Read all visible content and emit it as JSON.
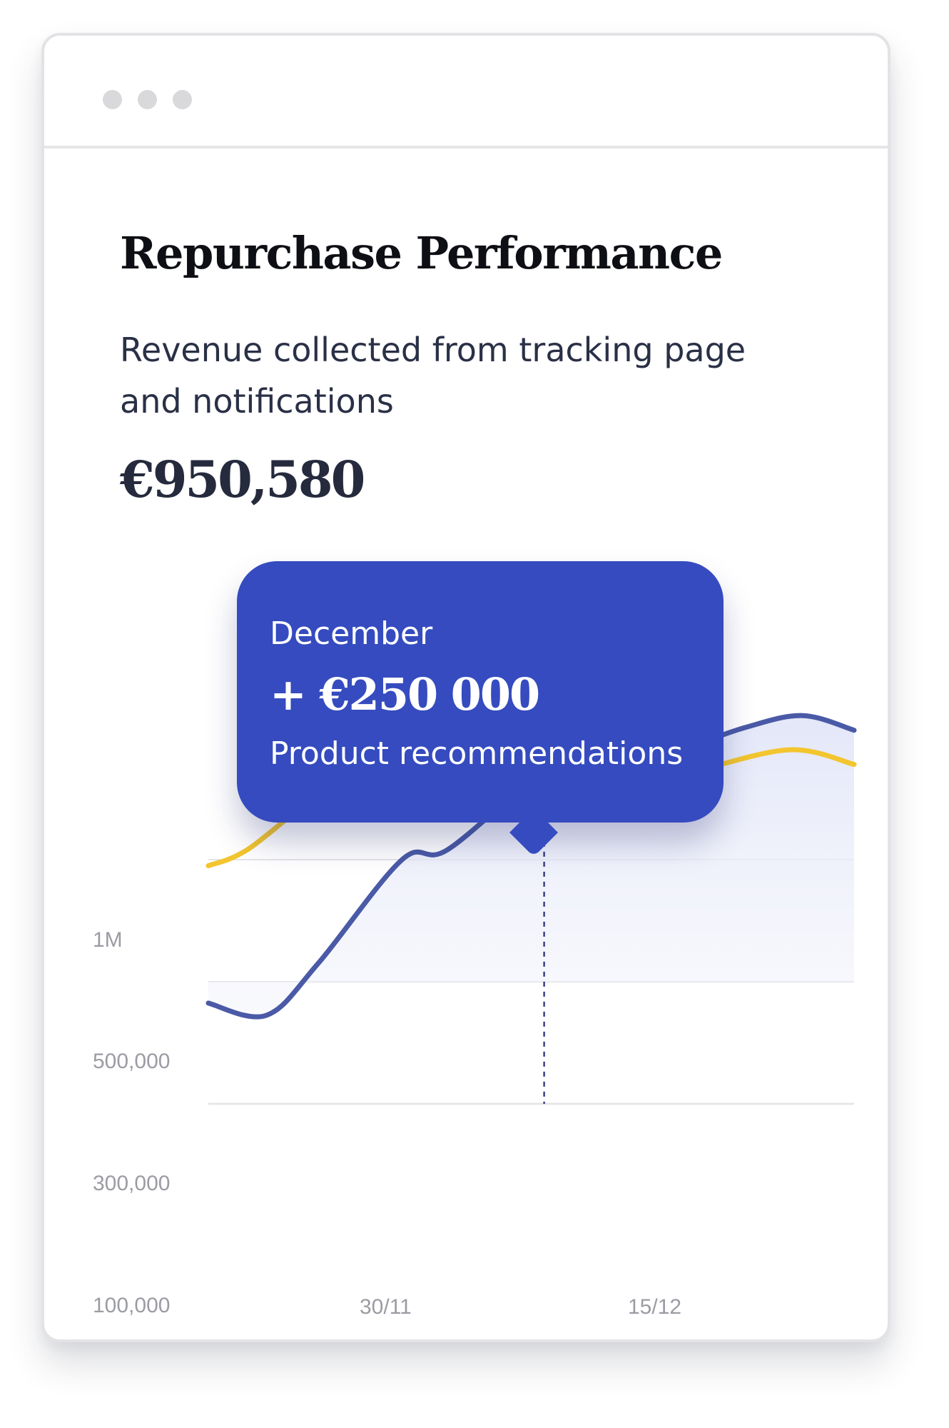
{
  "card": {
    "title": "Repurchase Performance",
    "subtitle": "Revenue collected from tracking page and notifications",
    "total": "€950,580"
  },
  "tooltip": {
    "month": "December",
    "value": "+ €250 000",
    "label": "Product recommendations"
  },
  "colors": {
    "tooltip": "#354bbf",
    "primary_line": "#4a5aa6",
    "secondary_line": "#f3c52e",
    "marker": "#2f2a6e",
    "grid": "#e4e4e8",
    "axis_text": "#9b9ca3"
  },
  "chart_data": {
    "type": "line",
    "title": "",
    "xlabel": "",
    "ylabel": "",
    "y_ticks": [
      "1M",
      "500,000",
      "300,000",
      "100,000"
    ],
    "x_tick_labels": [
      "30/11",
      "15/12"
    ],
    "grid": "horizontal",
    "legend": "none",
    "series": [
      {
        "color": "#4a5aa6",
        "area_fill": true,
        "points": [
          {
            "x": 0.0,
            "y": 265000
          },
          {
            "x": 0.09,
            "y": 245000
          },
          {
            "x": 0.17,
            "y": 330000
          },
          {
            "x": 0.3,
            "y": 500000
          },
          {
            "x": 0.37,
            "y": 540000
          },
          {
            "x": 0.52,
            "y": 860000
          },
          {
            "x": 0.6,
            "y": 890000
          },
          {
            "x": 0.7,
            "y": 925000
          },
          {
            "x": 0.83,
            "y": 1040000
          },
          {
            "x": 0.92,
            "y": 1090000
          },
          {
            "x": 1.0,
            "y": 1030000
          }
        ]
      },
      {
        "color": "#f3c52e",
        "area_fill": false,
        "points": [
          {
            "x": 0.0,
            "y": 490000
          },
          {
            "x": 0.06,
            "y": 540000
          },
          {
            "x": 0.18,
            "y": 770000
          },
          {
            "x": 0.3,
            "y": 820000
          },
          {
            "x": 0.42,
            "y": 790000
          },
          {
            "x": 0.52,
            "y": 750000
          },
          {
            "x": 0.62,
            "y": 780000
          },
          {
            "x": 0.75,
            "y": 860000
          },
          {
            "x": 0.9,
            "y": 950000
          },
          {
            "x": 1.0,
            "y": 890000
          }
        ]
      }
    ],
    "highlight": {
      "x": 0.52,
      "y": 860000,
      "series": 0
    }
  }
}
